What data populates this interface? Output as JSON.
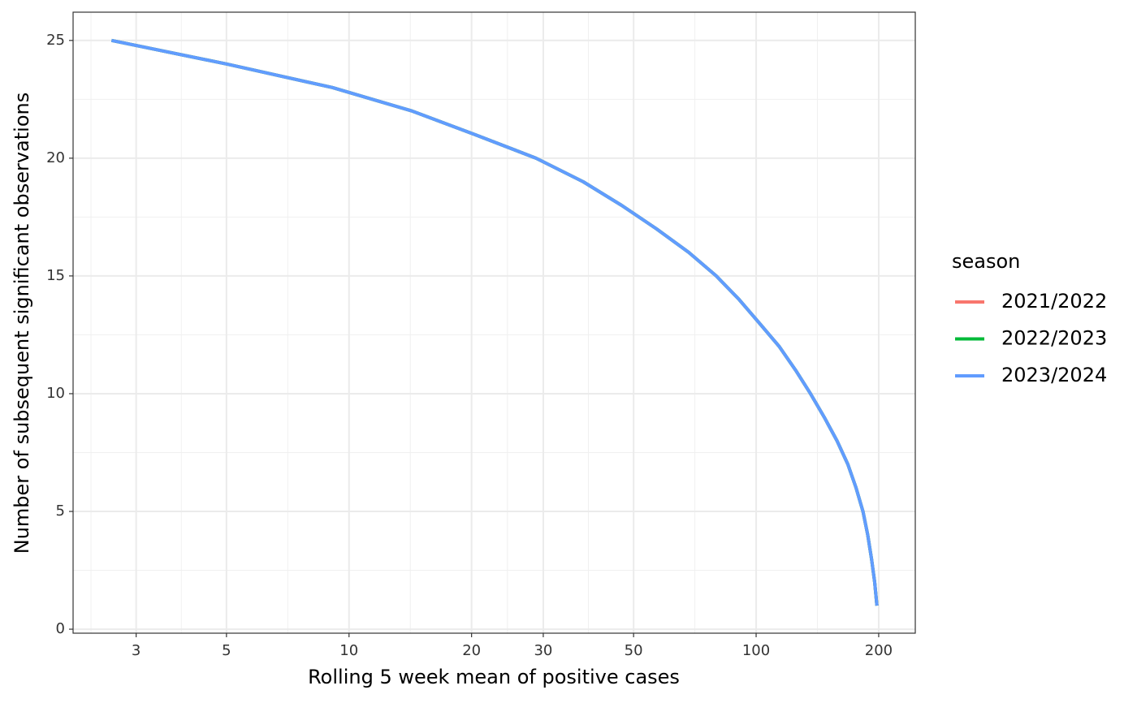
{
  "chart_data": {
    "type": "line",
    "x_label": "Rolling 5 week mean of positive cases",
    "y_label": "Number of subsequent significant observations",
    "x_scale": "log",
    "x": [
      2.61,
      5,
      9.1,
      14.3,
      20.4,
      28.8,
      37.6,
      46.7,
      56.9,
      68.3,
      79.8,
      90.8,
      101.8,
      114,
      125,
      136,
      147,
      158,
      168,
      176,
      183,
      188,
      192,
      195.5,
      198
    ],
    "series": [
      {
        "name": "2021/2022",
        "color": "#F8766D",
        "values": [
          25,
          24,
          23,
          22,
          21,
          20,
          19,
          18,
          17,
          16,
          15,
          14,
          13,
          12,
          11,
          10,
          9,
          8,
          7,
          6,
          5,
          4,
          3,
          2,
          1
        ]
      },
      {
        "name": "2022/2023",
        "color": "#00BA38",
        "values": [
          25,
          24,
          23,
          22,
          21,
          20,
          19,
          18,
          17,
          16,
          15,
          14,
          13,
          12,
          11,
          10,
          9,
          8,
          7,
          6,
          5,
          4,
          3,
          2,
          1
        ]
      },
      {
        "name": "2023/2024",
        "color": "#619CFF",
        "values": [
          25,
          24,
          23,
          22,
          21,
          20,
          19,
          18,
          17,
          16,
          15,
          14,
          13,
          12,
          11,
          10,
          9,
          8,
          7,
          6,
          5,
          4,
          3,
          2,
          1
        ]
      }
    ],
    "legend_title": "season",
    "legend_position": "right",
    "xlim": [
      2.1,
      246
    ],
    "xticks": [
      3,
      5,
      10,
      20,
      30,
      50,
      100,
      200
    ],
    "ylim": [
      -0.17,
      26.2
    ],
    "yticks": [
      0,
      5,
      10,
      15,
      20,
      25
    ],
    "grid": true
  }
}
